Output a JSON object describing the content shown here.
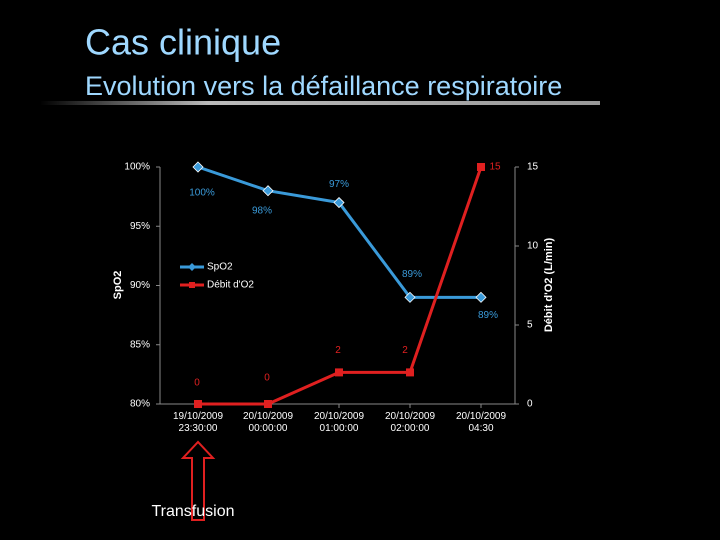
{
  "title": "Cas clinique",
  "subtitle": "Evolution vers la défaillance respiratoire",
  "annotation": "Transfusion",
  "chart_data": {
    "type": "line",
    "categories": [
      "19/10/2009\n23:30:00",
      "20/10/2009\n00:00:00",
      "20/10/2009\n01:00:00",
      "20/10/2009\n02:00:00",
      "20/10/2009\n04:30"
    ],
    "series": [
      {
        "name": "SpO2",
        "color": "#3a9ad9",
        "values": [
          100,
          98,
          97,
          89,
          89
        ],
        "value_labels": [
          "100%",
          "98%",
          "97%",
          "89%",
          "89%"
        ]
      },
      {
        "name": "Débit d'O2",
        "color": "#e02020",
        "axis": "y2",
        "values": [
          0,
          0,
          2,
          2,
          15
        ]
      }
    ],
    "ylabel": "SpO2",
    "y2label": "Débit d'O2 (L/min)",
    "ylim": [
      80,
      100
    ],
    "yticks": [
      {
        "value": 80,
        "label": "80%"
      },
      {
        "value": 85,
        "label": "85%"
      },
      {
        "value": 90,
        "label": "90%"
      },
      {
        "value": 95,
        "label": "95%"
      },
      {
        "value": 100,
        "label": "100%"
      }
    ],
    "y2lim": [
      0,
      15
    ],
    "y2ticks": [
      0,
      5,
      10,
      15
    ],
    "legend": "left"
  }
}
